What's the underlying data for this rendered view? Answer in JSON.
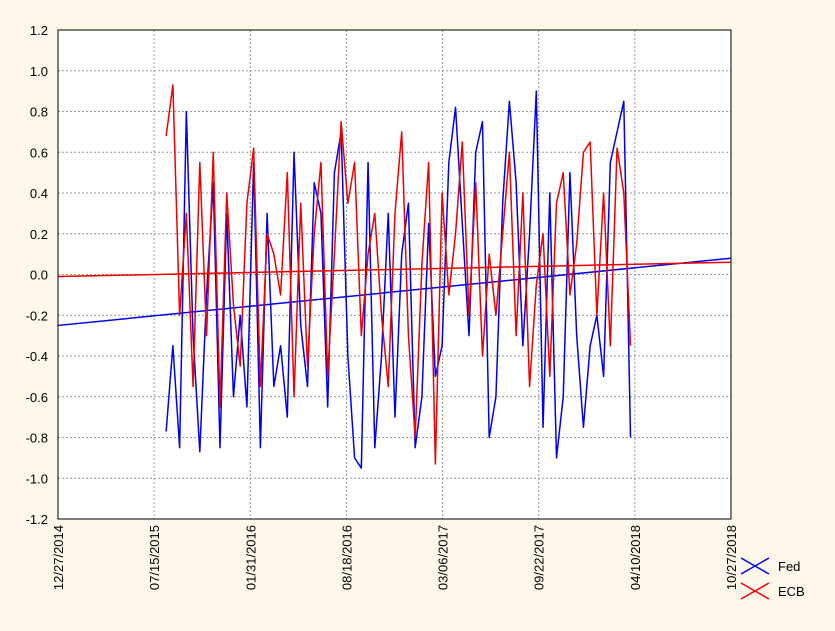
{
  "chart_data": {
    "type": "line",
    "xlim": [
      "12/27/2014",
      "10/27/2018"
    ],
    "xticks": [
      "12/27/2014",
      "07/15/2015",
      "01/31/2016",
      "08/18/2016",
      "03/06/2017",
      "09/22/2017",
      "04/10/2018",
      "10/27/2018"
    ],
    "ylim": [
      -1.2,
      1.2
    ],
    "yticks": [
      1.2,
      {
        "value": 1.0,
        "label": "1.0"
      },
      0.8,
      0.6,
      0.4,
      0.2,
      {
        "value": 0.0,
        "label": "0.0"
      },
      -0.2,
      -0.4,
      -0.6,
      -0.8,
      {
        "value": -1.0,
        "label": "-1.0"
      },
      -1.2
    ],
    "grid": true,
    "legend": "bottom-right",
    "x": [
      "08/09/2015",
      "08/23/2015",
      "09/06/2015",
      "09/20/2015",
      "10/04/2015",
      "10/18/2015",
      "11/01/2015",
      "11/15/2015",
      "11/29/2015",
      "12/13/2015",
      "12/27/2015",
      "01/10/2016",
      "01/24/2016",
      "02/07/2016",
      "02/21/2016",
      "03/06/2016",
      "03/20/2016",
      "04/03/2016",
      "04/17/2016",
      "05/01/2016",
      "05/15/2016",
      "05/29/2016",
      "06/12/2016",
      "06/26/2016",
      "07/10/2016",
      "07/24/2016",
      "08/07/2016",
      "08/21/2016",
      "09/04/2016",
      "09/18/2016",
      "10/02/2016",
      "10/16/2016",
      "10/30/2016",
      "11/13/2016",
      "11/27/2016",
      "12/11/2016",
      "12/25/2016",
      "01/08/2017",
      "01/22/2017",
      "02/05/2017",
      "02/19/2017",
      "03/05/2017",
      "03/19/2017",
      "04/02/2017",
      "04/16/2017",
      "04/30/2017",
      "05/14/2017",
      "05/28/2017",
      "06/11/2017",
      "06/25/2017",
      "07/09/2017",
      "07/23/2017",
      "08/06/2017",
      "08/20/2017",
      "09/03/2017",
      "09/17/2017",
      "10/01/2017",
      "10/15/2017",
      "10/29/2017",
      "11/12/2017",
      "11/26/2017",
      "12/10/2017",
      "12/24/2017",
      "01/07/2018",
      "01/21/2018",
      "02/04/2018",
      "02/18/2018",
      "03/04/2018",
      "03/18/2018",
      "04/01/2018"
    ],
    "series": [
      {
        "name": "Fed",
        "color": "#0000ee",
        "trend": [
          -0.25,
          0.08
        ],
        "values": [
          -0.77,
          -0.35,
          -0.85,
          0.8,
          -0.3,
          -0.87,
          -0.1,
          0.45,
          -0.85,
          0.3,
          -0.6,
          -0.2,
          -0.65,
          0.55,
          -0.85,
          0.3,
          -0.55,
          -0.35,
          -0.7,
          0.6,
          -0.25,
          -0.55,
          0.45,
          0.3,
          -0.65,
          0.5,
          0.7,
          -0.4,
          -0.9,
          -0.95,
          0.55,
          -0.85,
          -0.4,
          0.3,
          -0.7,
          0.1,
          0.35,
          -0.85,
          -0.6,
          0.25,
          -0.5,
          -0.35,
          0.55,
          0.82,
          0.25,
          -0.3,
          0.6,
          0.75,
          -0.8,
          -0.6,
          0.35,
          0.85,
          0.45,
          -0.35,
          0.2,
          0.9,
          -0.75,
          0.4,
          -0.9,
          -0.6,
          0.5,
          -0.3,
          -0.75,
          -0.35,
          -0.2,
          -0.5,
          0.55,
          0.7,
          0.85,
          -0.8
        ]
      },
      {
        "name": "ECB",
        "color": "#ee0000",
        "trend": [
          -0.01,
          0.06
        ],
        "values": [
          0.68,
          0.93,
          -0.2,
          0.3,
          -0.55,
          0.55,
          -0.3,
          0.6,
          -0.65,
          0.4,
          -0.15,
          -0.45,
          0.35,
          0.62,
          -0.55,
          0.2,
          0.1,
          -0.1,
          0.5,
          -0.6,
          0.35,
          -0.45,
          0.2,
          0.55,
          -0.5,
          0.1,
          0.75,
          0.35,
          0.55,
          -0.3,
          0.1,
          0.3,
          -0.2,
          -0.55,
          0.3,
          0.7,
          -0.3,
          -0.8,
          0.05,
          0.55,
          -0.93,
          0.4,
          -0.1,
          0.2,
          0.65,
          -0.2,
          0.45,
          -0.4,
          0.1,
          -0.2,
          0.2,
          0.6,
          -0.3,
          0.4,
          -0.55,
          -0.05,
          0.2,
          -0.5,
          0.35,
          0.5,
          -0.1,
          0.15,
          0.6,
          0.65,
          -0.2,
          0.4,
          -0.35,
          0.62,
          0.4,
          -0.35
        ]
      }
    ]
  }
}
